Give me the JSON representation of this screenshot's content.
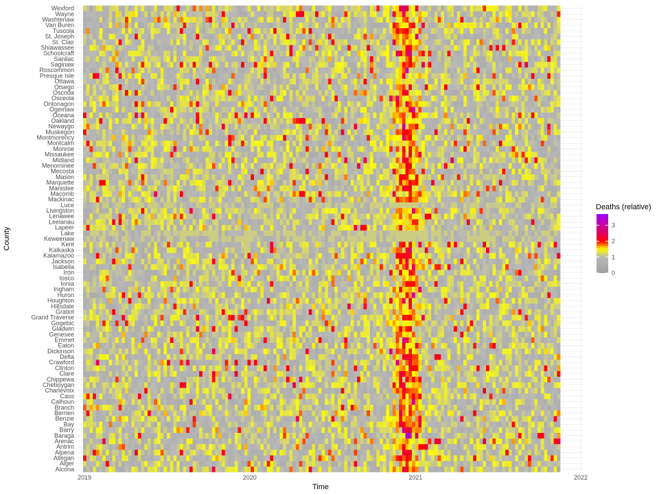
{
  "chart_data": {
    "type": "heatmap",
    "title": "",
    "xlabel": "Time",
    "ylabel": "County",
    "x_ticks": [
      "2019",
      "2020",
      "2021",
      "2022"
    ],
    "x_range": [
      "2019-01-01",
      "2021-10-31"
    ],
    "time_resolution": "week",
    "counties": [
      "Alcona",
      "Alger",
      "Allegan",
      "Alpena",
      "Antrim",
      "Arenac",
      "Baraga",
      "Barry",
      "Bay",
      "Benzie",
      "Berrien",
      "Branch",
      "Calhoun",
      "Cass",
      "Charlevoix",
      "Cheboygan",
      "Chippewa",
      "Clare",
      "Clinton",
      "Crawford",
      "Delta",
      "Dickinson",
      "Eaton",
      "Emmet",
      "Genesee",
      "Gladwin",
      "Gogebic",
      "Grand Traverse",
      "Gratiot",
      "Hillsdale",
      "Houghton",
      "Huron",
      "Ingham",
      "Ionia",
      "Iosco",
      "Iron",
      "Isabella",
      "Jackson",
      "Kalamazoo",
      "Kalkaska",
      "Kent",
      "Keweenaw",
      "Lake",
      "Lapeer",
      "Leelanau",
      "Lenawee",
      "Livingston",
      "Luce",
      "Mackinac",
      "Macomb",
      "Manistee",
      "Marquette",
      "Mason",
      "Mecosta",
      "Menominee",
      "Midland",
      "Missaukee",
      "Monroe",
      "Montcalm",
      "Montmorency",
      "Muskegon",
      "Newaygo",
      "Oakland",
      "Oceana",
      "Ogemaw",
      "Ontonagon",
      "Osceola",
      "Oscoda",
      "Otsego",
      "Ottawa",
      "Presque Isle",
      "Roscommon",
      "Saginaw",
      "Sanilac",
      "Schoolcraft",
      "Shiawassee",
      "St. Clair",
      "St. Joseph",
      "Tuscola",
      "Van Buren",
      "Washtenaw",
      "Wayne",
      "Wexford"
    ],
    "value_description": "Relative weekly deaths per county (ratio to expected); most cells range 0–2 with a pronounced surge of values near 2 around November–December 2020, early-2020 spikes in Wayne, Oakland and Macomb, and a single peak near 3.5 in Baraga in late 2020.",
    "notable_values": [
      {
        "county": "Baraga",
        "x": "2020-11-29",
        "value": 3.5
      },
      {
        "county": "Wayne",
        "x": "2020-04-12",
        "value": 2.3
      },
      {
        "county": "Oakland",
        "x": "2020-04-12",
        "value": 2.2
      },
      {
        "county": "Macomb",
        "x": "2020-04-12",
        "value": 2.2
      }
    ],
    "legend": {
      "title": "Deaths (relative)",
      "position": "right",
      "min": 0,
      "max": 3.7,
      "ticks": [
        "0",
        "1",
        "2",
        "3"
      ],
      "colors": [
        "#a0a0a0",
        "#ffff00",
        "#ff0000",
        "#a000ff"
      ]
    },
    "grid": true
  }
}
